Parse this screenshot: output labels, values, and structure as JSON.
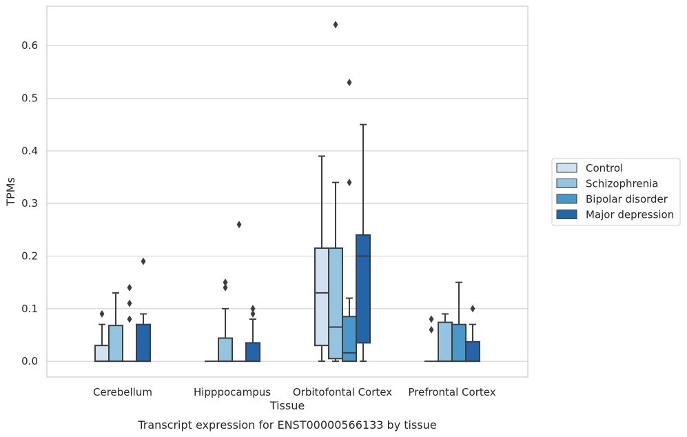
{
  "chart_data": {
    "type": "box",
    "caption": "Transcript expression for ENST00000566133 by tissue",
    "xlabel": "Tissue",
    "ylabel": "TPMs",
    "ylim": [
      -0.03,
      0.675
    ],
    "yticks": [
      0.0,
      0.1,
      0.2,
      0.3,
      0.4,
      0.5,
      0.6
    ],
    "ytick_labels": [
      "0.0",
      "0.1",
      "0.2",
      "0.3",
      "0.4",
      "0.5",
      "0.6"
    ],
    "grid": "horizontal",
    "legend_position": "right",
    "categories": [
      "Cerebellum",
      "Hipppocampus",
      "Orbitofontal Cortex",
      "Prefrontal Cortex"
    ],
    "series": [
      {
        "name": "Control",
        "color": "#d0e1f2",
        "boxes": [
          {
            "whislo": 0.0,
            "q1": 0.0,
            "med": 0.0,
            "q3": 0.03,
            "whishi": 0.07,
            "fliers": [
              0.09
            ]
          },
          {
            "whislo": 0.0,
            "q1": 0.0,
            "med": 0.0,
            "q3": 0.0,
            "whishi": 0.0,
            "fliers": []
          },
          {
            "whislo": 0.0,
            "q1": 0.03,
            "med": 0.13,
            "q3": 0.215,
            "whishi": 0.39,
            "fliers": []
          },
          {
            "whislo": 0.0,
            "q1": 0.0,
            "med": 0.0,
            "q3": 0.0,
            "whishi": 0.0,
            "fliers": [
              0.06,
              0.08
            ]
          }
        ]
      },
      {
        "name": "Schizophrenia",
        "color": "#94c4df",
        "boxes": [
          {
            "whislo": 0.0,
            "q1": 0.0,
            "med": 0.0,
            "q3": 0.068,
            "whishi": 0.13,
            "fliers": []
          },
          {
            "whislo": 0.0,
            "q1": 0.0,
            "med": 0.0,
            "q3": 0.044,
            "whishi": 0.1,
            "fliers": [
              0.14,
              0.15
            ]
          },
          {
            "whislo": 0.0,
            "q1": 0.005,
            "med": 0.065,
            "q3": 0.215,
            "whishi": 0.34,
            "fliers": [
              0.64
            ]
          },
          {
            "whislo": 0.0,
            "q1": 0.0,
            "med": 0.0,
            "q3": 0.074,
            "whishi": 0.09,
            "fliers": []
          }
        ]
      },
      {
        "name": "Bipolar disorder",
        "color": "#4a98c9",
        "boxes": [
          {
            "whislo": 0.0,
            "q1": 0.0,
            "med": 0.0,
            "q3": 0.0,
            "whishi": 0.0,
            "fliers": [
              0.08,
              0.11,
              0.14
            ]
          },
          {
            "whislo": 0.0,
            "q1": 0.0,
            "med": 0.0,
            "q3": 0.0,
            "whishi": 0.0,
            "fliers": [
              0.26
            ]
          },
          {
            "whislo": 0.0,
            "q1": 0.0,
            "med": 0.016,
            "q3": 0.085,
            "whishi": 0.12,
            "fliers": [
              0.34,
              0.53
            ]
          },
          {
            "whislo": 0.0,
            "q1": 0.0,
            "med": 0.0,
            "q3": 0.07,
            "whishi": 0.15,
            "fliers": []
          }
        ]
      },
      {
        "name": "Major depression",
        "color": "#2464a8",
        "boxes": [
          {
            "whislo": 0.0,
            "q1": 0.0,
            "med": 0.0,
            "q3": 0.07,
            "whishi": 0.09,
            "fliers": [
              0.19
            ]
          },
          {
            "whislo": 0.0,
            "q1": 0.0,
            "med": 0.0,
            "q3": 0.035,
            "whishi": 0.08,
            "fliers": [
              0.09,
              0.1
            ]
          },
          {
            "whislo": 0.0,
            "q1": 0.035,
            "med": 0.2,
            "q3": 0.24,
            "whishi": 0.45,
            "fliers": []
          },
          {
            "whislo": 0.0,
            "q1": 0.0,
            "med": 0.0,
            "q3": 0.037,
            "whishi": 0.07,
            "fliers": [
              0.1
            ]
          }
        ]
      }
    ]
  }
}
